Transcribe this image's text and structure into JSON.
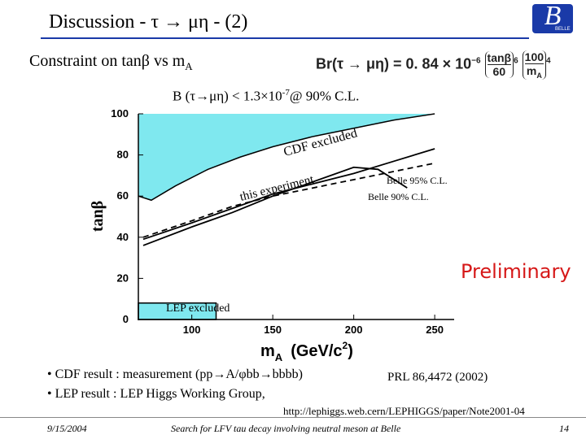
{
  "slide": {
    "title": "Discussion - τ → μη - (2)",
    "subtitle_main": "Constraint on tanβ vs m",
    "subtitle_sub": "A",
    "formula": {
      "prefix": "Br(τ → μη) = 0. 84 × 10",
      "exp1": "−6",
      "tan": "tanβ",
      "tan_den": "60",
      "exp2": "6",
      "m_num": "100",
      "m_den": "m",
      "m_den_sub": "A",
      "exp3": "4"
    },
    "limit": {
      "pre": "B (τ→μη) < 1.3×10",
      "exp": "-7",
      "post": "@ 90% C.L."
    },
    "preliminary": "Preliminary",
    "bullets": [
      "• CDF result : measurement (pp→A/φbb→bbbb)",
      "• LEP result :  LEP Higgs Working Group,"
    ],
    "ref1": "PRL 86,4472 (2002)",
    "ref2": "http://lephiggs.web.cern/LEPHIGGS/paper/Note2001-04",
    "footer": {
      "date": "9/15/2004",
      "title": "Search for LFV tau decay involving neutral meson at Belle",
      "page": "14"
    },
    "logo": {
      "letter": "B",
      "label": "BELLE"
    }
  },
  "chart_data": {
    "type": "line",
    "xlabel": "m",
    "xlabel_sub": "A",
    "xunit": "(GeV/c",
    "xunit_exp": "2",
    "xunit_close": ")",
    "ylabel": "tanβ",
    "xlim": [
      67,
      262
    ],
    "ylim": [
      0,
      100
    ],
    "x_ticks": [
      100,
      150,
      200,
      250
    ],
    "y_ticks": [
      0,
      20,
      40,
      60,
      80,
      100
    ],
    "grid": false,
    "colors": {
      "cdf_region": "#7fe8ef",
      "lep_region": "#7fe8ef"
    },
    "annotations": {
      "cdf": "CDF excluded",
      "this": "this experiment",
      "belle95": "Belle 95% C.L.",
      "belle90": "Belle 90% C.L.",
      "lep": "LEP excluded"
    },
    "series": [
      {
        "name": "CDF excluded",
        "style": "filled",
        "x": [
          67,
          75,
          90,
          110,
          130,
          150,
          175,
          200,
          225,
          250
        ],
        "y": [
          60,
          58,
          65,
          73,
          79,
          84,
          89,
          93,
          97,
          100
        ]
      },
      {
        "name": "Belle 95% C.L.",
        "style": "solid",
        "x": [
          70,
          100,
          125,
          150,
          175,
          200,
          225,
          250
        ],
        "y": [
          39,
          47,
          54,
          61,
          66,
          71,
          77,
          83
        ]
      },
      {
        "name": "Belle 90% C.L.",
        "style": "dashed",
        "x": [
          70,
          100,
          125,
          150,
          175,
          200,
          225,
          250
        ],
        "y": [
          40,
          48,
          55,
          60,
          64,
          68,
          72,
          76
        ]
      },
      {
        "name": "this experiment",
        "style": "solid",
        "x": [
          70,
          100,
          125,
          150,
          175,
          200,
          215,
          233
        ],
        "y": [
          36,
          45,
          52,
          60,
          67,
          74,
          73,
          64
        ]
      },
      {
        "name": "LEP excluded",
        "style": "filled",
        "x": [
          67,
          115
        ],
        "y": [
          8,
          8
        ]
      }
    ]
  }
}
